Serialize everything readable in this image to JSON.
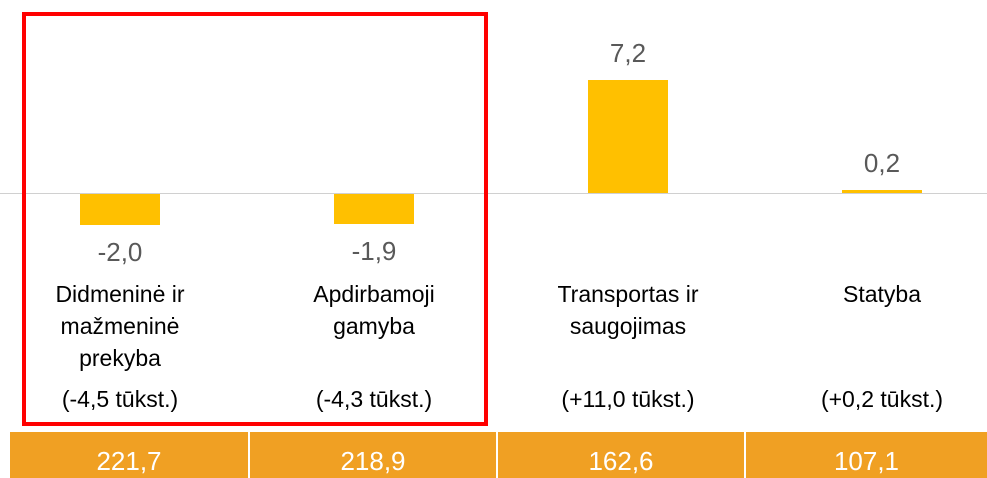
{
  "chart_data": {
    "type": "bar",
    "categories": [
      "Didmeninė ir mažmeninė prekyba",
      "Apdirbamoji gamyba",
      "Transportas ir saugojimas",
      "Statyba"
    ],
    "values": [
      -2.0,
      -1.9,
      7.2,
      0.2
    ],
    "value_labels": [
      "-2,0",
      "-1,9",
      "7,2",
      "0,2"
    ],
    "changes": [
      "(-4,5 tūkst.)",
      "(-4,3 tūkst.)",
      "(+11,0 tūkst.)",
      "(+0,2 tūkst.)"
    ],
    "totals": [
      "221,7",
      "218,9",
      "162,6",
      "107,1"
    ],
    "color": "#FFC000"
  }
}
